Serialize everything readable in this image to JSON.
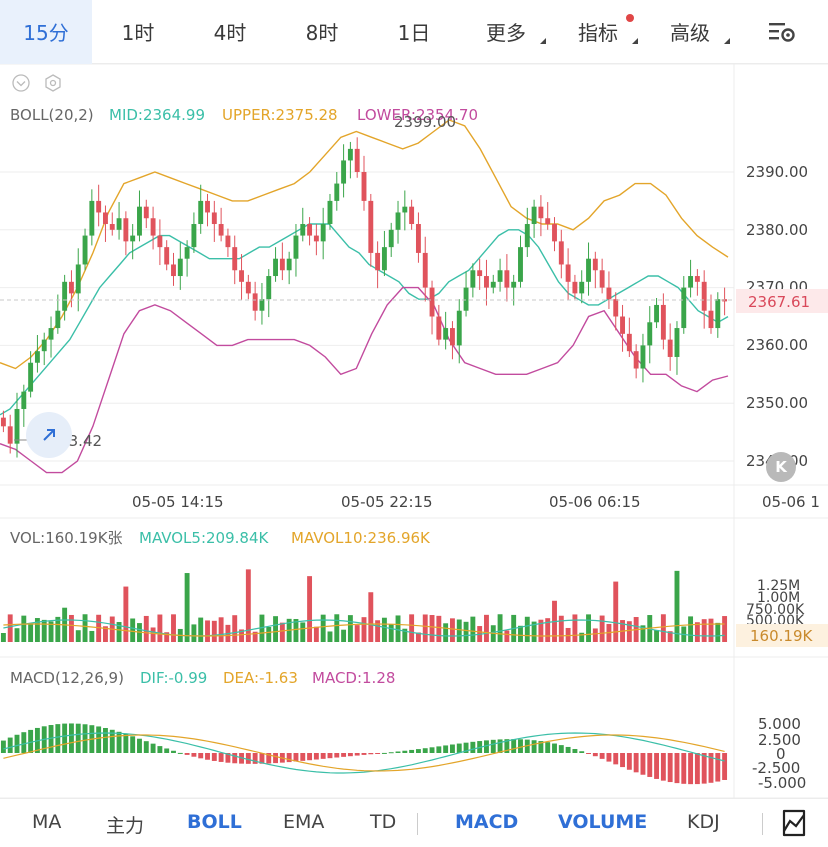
{
  "top_tabs": [
    {
      "label": "15分",
      "active": true
    },
    {
      "label": "1时"
    },
    {
      "label": "4时"
    },
    {
      "label": "8时"
    },
    {
      "label": "1日"
    },
    {
      "label": "更多",
      "dropdown": true
    },
    {
      "label": "指标",
      "dropdown": true,
      "badge": true
    },
    {
      "label": "高级",
      "dropdown": true
    }
  ],
  "settings_icon": "chart-settings-icon",
  "boll": {
    "title": "BOLL(20,2)",
    "mid": "MID:2364.99",
    "upper": "UPPER:2375.28",
    "lower": "LOWER:2354.70",
    "high_label": "2399.00",
    "low_label": "2343.42",
    "price_ticks": [
      "2390.00",
      "2380.00",
      "2370.00",
      "2360.00",
      "2350.00",
      "2340.00"
    ],
    "current_price": "2367.61",
    "colors": {
      "mid": "#3bbfa8",
      "upper": "#e3a52a",
      "lower": "#c24b9e",
      "up": "#3aa54a",
      "down": "#e0535c"
    }
  },
  "time_labels": [
    "05-05 14:15",
    "05-05 22:15",
    "05-06 06:15",
    "05-06 1"
  ],
  "vol": {
    "title": "VOL:160.19K张",
    "mavol5": "MAVOL5:209.84K",
    "mavol10": "MAVOL10:236.96K",
    "ticks": [
      "1.25M",
      "1.00M",
      "750.00K",
      "500.00K"
    ],
    "current": "160.19K"
  },
  "macd": {
    "title": "MACD(12,26,9)",
    "dif": "DIF:-0.99",
    "dea": "DEA:-1.63",
    "macd": "MACD:1.28",
    "ticks": [
      "5.000",
      "2.500",
      "0",
      "-2.500",
      "-5.000"
    ]
  },
  "bottom_tabs": [
    {
      "label": "MA"
    },
    {
      "label": "主力"
    },
    {
      "label": "BOLL",
      "active": true
    },
    {
      "label": "EMA"
    },
    {
      "label": "TD"
    },
    {
      "label": "MACD",
      "active": true
    },
    {
      "label": "VOLUME",
      "active": true
    },
    {
      "label": "KDJ"
    }
  ],
  "k_button_label": "K",
  "chart_data": {
    "type": "candlestick",
    "price_range": [
      2337,
      2401
    ],
    "closes": [
      2346,
      2343,
      2349,
      2352,
      2357,
      2359,
      2361,
      2363,
      2366,
      2371,
      2369,
      2374,
      2379,
      2385,
      2383,
      2381,
      2380,
      2382,
      2378,
      2379,
      2384,
      2382,
      2379,
      2377,
      2374,
      2372,
      2375,
      2377,
      2381,
      2385,
      2383,
      2381,
      2379,
      2377,
      2373,
      2371,
      2369,
      2366,
      2368,
      2372,
      2375,
      2373,
      2375,
      2379,
      2381,
      2379,
      2378,
      2381,
      2385,
      2388,
      2392,
      2394,
      2390,
      2385,
      2376,
      2373,
      2377,
      2380,
      2383,
      2384,
      2381,
      2376,
      2370,
      2365,
      2361,
      2363,
      2360,
      2366,
      2370,
      2373,
      2372,
      2370,
      2371,
      2373,
      2370,
      2371,
      2377,
      2381,
      2384,
      2382,
      2381,
      2378,
      2374,
      2371,
      2369,
      2371,
      2375,
      2373,
      2370,
      2368,
      2365,
      2362,
      2359,
      2356,
      2360,
      2364,
      2367,
      2361,
      2358,
      2363,
      2370,
      2372,
      2371,
      2366,
      2363,
      2368,
      2367.61
    ],
    "mid_band": [
      2348,
      2349,
      2351,
      2353,
      2355,
      2357,
      2359,
      2361,
      2364,
      2367,
      2370,
      2372,
      2374,
      2376,
      2377,
      2378,
      2379,
      2379,
      2378,
      2377,
      2376,
      2375,
      2375,
      2375,
      2375,
      2376,
      2377,
      2377,
      2378,
      2379,
      2380,
      2381,
      2381,
      2381,
      2379,
      2377,
      2376,
      2374,
      2373,
      2372,
      2371,
      2369,
      2368,
      2368,
      2369,
      2371,
      2372,
      2373,
      2375,
      2377,
      2379,
      2380,
      2380,
      2379,
      2377,
      2374,
      2371,
      2369,
      2368,
      2367,
      2367,
      2368,
      2369,
      2370,
      2371,
      2372,
      2372,
      2371,
      2370,
      2368,
      2366,
      2365,
      2364,
      2364.99
    ],
    "upper_band": [
      2357,
      2356,
      2358,
      2361,
      2365,
      2370,
      2376,
      2383,
      2388,
      2389,
      2390,
      2389,
      2388,
      2387,
      2386,
      2385,
      2385,
      2386,
      2387,
      2388,
      2390,
      2393,
      2396,
      2397,
      2396,
      2395,
      2394,
      2395,
      2397,
      2399,
      2398,
      2394,
      2389,
      2384,
      2382,
      2381,
      2381,
      2380,
      2382,
      2385,
      2386,
      2388,
      2388,
      2386,
      2382,
      2379,
      2377,
      2375.28
    ],
    "lower_band": [
      2343,
      2342,
      2340,
      2338,
      2338,
      2340,
      2346,
      2354,
      2362,
      2366,
      2367,
      2366,
      2364,
      2362,
      2360,
      2360,
      2361,
      2361,
      2361,
      2361,
      2360,
      2358,
      2355,
      2356,
      2362,
      2367,
      2370,
      2370,
      2367,
      2361,
      2357,
      2356,
      2355,
      2355,
      2355,
      2356,
      2357,
      2360,
      2365,
      2366,
      2362,
      2358,
      2355,
      2355,
      2353,
      2352,
      2354,
      2354.7
    ],
    "volume_range": [
      0,
      1500000
    ],
    "macd_range": [
      -6.5,
      7
    ]
  }
}
